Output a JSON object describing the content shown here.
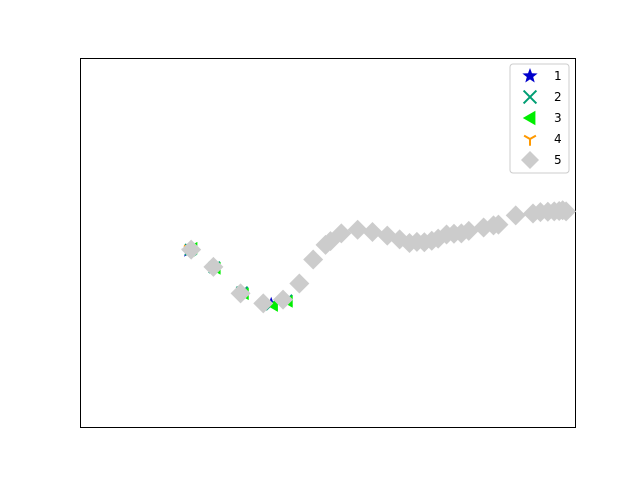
{
  "chart_data": {
    "type": "scatter",
    "title": "",
    "xlabel": "",
    "ylabel": "",
    "axes_visible": false,
    "grid": false,
    "xlim": [
      0,
      100
    ],
    "ylim": [
      0,
      100
    ],
    "legend": {
      "placement": "top-right"
    },
    "series": [
      {
        "name": "1",
        "marker": "star",
        "color": "#0000cc",
        "points": [
          [
            22.0,
            48.0
          ],
          [
            22.4,
            48.4
          ],
          [
            21.7,
            47.8
          ],
          [
            27.0,
            43.5
          ],
          [
            32.5,
            36.5
          ],
          [
            38.5,
            33.5
          ],
          [
            41.5,
            34.5
          ]
        ]
      },
      {
        "name": "2",
        "marker": "x",
        "color": "#009e73",
        "points": [
          [
            22.2,
            48.2
          ],
          [
            27.0,
            43.4
          ],
          [
            32.6,
            36.6
          ],
          [
            38.6,
            33.3
          ],
          [
            41.6,
            34.4
          ]
        ]
      },
      {
        "name": "3",
        "marker": "triangle-left",
        "color": "#00ee00",
        "points": [
          [
            22.6,
            48.6
          ],
          [
            22.0,
            47.9
          ],
          [
            27.3,
            43.1
          ],
          [
            33.0,
            36.2
          ],
          [
            38.9,
            33.0
          ],
          [
            41.9,
            34.1
          ]
        ]
      },
      {
        "name": "4",
        "marker": "tri-down",
        "color": "#ff9900",
        "points": [
          [
            22.4,
            48.0
          ],
          [
            21.9,
            48.5
          ]
        ]
      },
      {
        "name": "5",
        "marker": "diamond",
        "color": "#cccccc",
        "points": [
          [
            22.3,
            48.2
          ],
          [
            26.8,
            43.5
          ],
          [
            32.3,
            36.3
          ],
          [
            36.9,
            33.6
          ],
          [
            40.9,
            34.6
          ],
          [
            44.2,
            39.0
          ],
          [
            47.0,
            45.5
          ],
          [
            49.5,
            49.5
          ],
          [
            50.5,
            50.5
          ],
          [
            52.7,
            52.6
          ],
          [
            56.0,
            53.6
          ],
          [
            59.0,
            53.0
          ],
          [
            62.0,
            52.0
          ],
          [
            64.5,
            51.0
          ],
          [
            66.5,
            50.0
          ],
          [
            68.0,
            50.3
          ],
          [
            69.5,
            50.2
          ],
          [
            71.0,
            50.6
          ],
          [
            72.3,
            51.2
          ],
          [
            74.0,
            52.3
          ],
          [
            75.5,
            52.5
          ],
          [
            77.0,
            52.6
          ],
          [
            78.5,
            53.3
          ],
          [
            81.5,
            54.2
          ],
          [
            83.5,
            54.8
          ],
          [
            84.5,
            55.0
          ],
          [
            88.0,
            57.5
          ],
          [
            91.5,
            58.0
          ],
          [
            93.0,
            58.4
          ],
          [
            94.5,
            58.5
          ],
          [
            95.8,
            58.6
          ],
          [
            96.8,
            58.7
          ],
          [
            97.5,
            58.9
          ],
          [
            98.2,
            58.6
          ]
        ]
      }
    ]
  }
}
